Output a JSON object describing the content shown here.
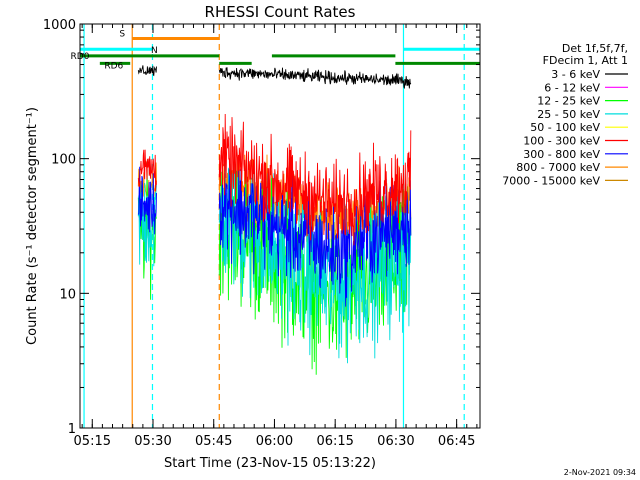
{
  "chart_data": {
    "type": "line",
    "title": "RHESSI Count Rates",
    "xlabel": "Start Time (23-Nov-15 05:13:22)",
    "ylabel": "Count Rate (s⁻¹ detector segment⁻¹)",
    "yscale": "log",
    "ylim": [
      1,
      1000
    ],
    "xlim_minutes": [
      -1.4,
      97.4
    ],
    "x_origin": "05:13:22",
    "x_ticks": [
      {
        "label": "05:15",
        "minute": 1.63
      },
      {
        "label": "05:30",
        "minute": 16.63
      },
      {
        "label": "05:45",
        "minute": 31.63
      },
      {
        "label": "06:00",
        "minute": 46.63
      },
      {
        "label": "06:15",
        "minute": 61.63
      },
      {
        "label": "06:30",
        "minute": 76.63
      },
      {
        "label": "06:45",
        "minute": 91.63
      }
    ],
    "y_ticks": [
      {
        "label": "1",
        "value": 1
      },
      {
        "label": "10",
        "value": 10
      },
      {
        "label": "100",
        "value": 100
      },
      {
        "label": "1000",
        "value": 1000
      }
    ],
    "legend_header": [
      "Det 1f,5f,7f,",
      "FDecim 1, Att 1"
    ],
    "series": [
      {
        "name": "3 - 6 keV",
        "color": "#000000",
        "segments": [
          {
            "x": [
              13.0,
              17.5
            ],
            "level": 450,
            "noise": 0.04
          },
          {
            "x": [
              33.0,
              80.3
            ],
            "level_start": 440,
            "level_end": 375,
            "noise": 0.04
          }
        ]
      },
      {
        "name": "6 - 12 keV",
        "color": "#ff00ff",
        "segments": []
      },
      {
        "name": "12 - 25 keV",
        "color": "#00ff00",
        "segments": [
          {
            "x": [
              13.0,
              17.5
            ],
            "level": 30,
            "noise": 0.35
          },
          {
            "x": [
              33.0,
              80.3
            ],
            "level_start": 35,
            "level_mid": 9,
            "level_end": 18,
            "noise": 0.45
          }
        ]
      },
      {
        "name": "25 - 50 keV",
        "color": "#00dddd",
        "segments": [
          {
            "x": [
              13.0,
              17.5
            ],
            "level": 35,
            "noise": 0.35
          },
          {
            "x": [
              33.0,
              80.3
            ],
            "level_start": 40,
            "level_mid": 11,
            "level_end": 20,
            "noise": 0.45
          }
        ]
      },
      {
        "name": "50 - 100 keV",
        "color": "#ffff00",
        "segments": []
      },
      {
        "name": "100 - 300 keV",
        "color": "#ff0000",
        "segments": [
          {
            "x": [
              13.0,
              17.5
            ],
            "level": 85,
            "noise": 0.15
          },
          {
            "x": [
              33.0,
              80.3
            ],
            "level_start": 100,
            "level_mid": 45,
            "level_end": 70,
            "noise": 0.25
          }
        ]
      },
      {
        "name": "300 - 800 keV",
        "color": "#0000ff",
        "segments": [
          {
            "x": [
              13.0,
              17.5
            ],
            "level": 45,
            "noise": 0.2
          },
          {
            "x": [
              33.0,
              80.3
            ],
            "level_start": 50,
            "level_mid": 20,
            "level_end": 35,
            "noise": 0.3
          }
        ]
      },
      {
        "name": "800 - 7000 keV",
        "color": "#ff8800",
        "segments": [
          {
            "x": [
              13.0,
              17.5
            ],
            "level": 60,
            "noise": 0.15
          },
          {
            "x": [
              33.0,
              80.3
            ],
            "level_start": 70,
            "level_mid": 35,
            "level_end": 50,
            "noise": 0.2
          }
        ]
      },
      {
        "name": "7000 - 15000 keV",
        "color": "#cc8800",
        "segments": []
      }
    ],
    "state_bars": [
      {
        "label": "S",
        "color": "#ff8800",
        "from": 11.5,
        "to": 33.0,
        "level": 780
      },
      {
        "label": "N",
        "color": "#00ffff",
        "from": -1.4,
        "to": 16.5,
        "level": 650,
        "label_at": 15.0
      },
      {
        "label": "N",
        "color": "#00ffff",
        "from": 78.5,
        "to": 97.4,
        "level": 650,
        "show_label": false
      },
      {
        "label": "RD0",
        "color": "#008800",
        "from": -1.4,
        "to": 33.0,
        "level": 580
      },
      {
        "label": "RD0",
        "color": "#008800",
        "from": 46.0,
        "to": 76.5,
        "level": 580,
        "show_label": false
      },
      {
        "label": "RD6",
        "color": "#008800",
        "from": 3.5,
        "to": 11.0,
        "level": 510
      },
      {
        "label": "RD6",
        "color": "#008800",
        "from": 33.0,
        "to": 41.0,
        "level": 510,
        "show_label": false
      },
      {
        "label": "RD6",
        "color": "#008800",
        "from": 76.5,
        "to": 97.4,
        "level": 510,
        "show_label": false
      }
    ],
    "vertical_markers": [
      {
        "minute": -0.4,
        "color": "#00ffff",
        "style": "solid"
      },
      {
        "minute": 11.5,
        "color": "#ff8800",
        "style": "solid"
      },
      {
        "minute": 16.5,
        "color": "#00ffff",
        "style": "dashed"
      },
      {
        "minute": 33.0,
        "color": "#ff8800",
        "style": "dashed"
      },
      {
        "minute": 78.5,
        "color": "#00ffff",
        "style": "solid"
      },
      {
        "minute": 93.5,
        "color": "#00ffff",
        "style": "dashed"
      }
    ],
    "footer_date": "2-Nov-2021 09:34"
  }
}
